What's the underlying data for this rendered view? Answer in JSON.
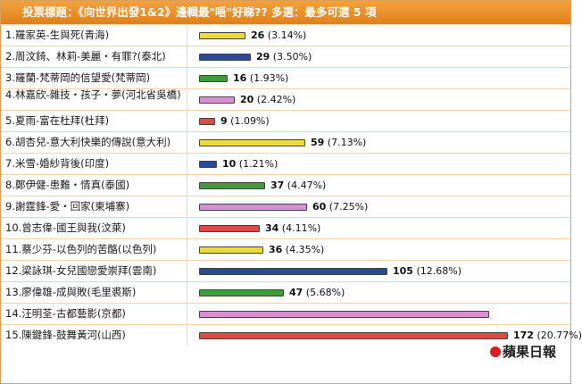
{
  "header": {
    "title": "投票標題：《向世界出發1&2》邊輯最\"唔\"好睇?? 多選：最多可選 5 項"
  },
  "colors": {
    "header": "#f09830",
    "yellow": "#ecdc3a",
    "blue": "#2b4798",
    "green": "#3f9a3a",
    "pink": "#d98ed8",
    "red": "#e04848"
  },
  "options": [
    {
      "label": "1.羅家英-生與死(青海)",
      "votes": "26",
      "pct": "(3.14%)",
      "fraction": 0.1512,
      "color": "yellow"
    },
    {
      "label": "2.周汶錡、林莉-美麗・有罪?(泰北)",
      "votes": "29",
      "pct": "(3.50%)",
      "fraction": 0.1686,
      "color": "blue"
    },
    {
      "label": "3.羅蘭-梵蒂岡的信望愛(梵蒂岡)",
      "votes": "16",
      "pct": "(1.93%)",
      "fraction": 0.093,
      "color": "green"
    },
    {
      "label": "4.林嘉欣-雜技・孩子・夢(河北省吳橋)",
      "votes": "20",
      "pct": "(2.42%)",
      "fraction": 0.1163,
      "color": "pink",
      "wrap": true
    },
    {
      "label": "5.夏雨-富在杜拜(杜拜)",
      "votes": "9",
      "pct": "(1.09%)",
      "fraction": 0.0523,
      "color": "red"
    },
    {
      "label": "6.胡杏兒-意大利快樂的傳說(意大利)",
      "votes": "59",
      "pct": "(7.13%)",
      "fraction": 0.343,
      "color": "yellow"
    },
    {
      "label": "7.米雪-婚紗背後(印度)",
      "votes": "10",
      "pct": "(1.21%)",
      "fraction": 0.0581,
      "color": "blue"
    },
    {
      "label": "8.鄭伊健-患難・情真(泰國)",
      "votes": "37",
      "pct": "(4.47%)",
      "fraction": 0.2151,
      "color": "green"
    },
    {
      "label": "9.謝霆鋒-愛・回家(柬埔寨)",
      "votes": "60",
      "pct": "(7.25%)",
      "fraction": 0.3488,
      "color": "pink"
    },
    {
      "label": "10.曾志偉-國王與我(汶萊)",
      "votes": "34",
      "pct": "(4.11%)",
      "fraction": 0.1977,
      "color": "red"
    },
    {
      "label": "11.蔡少芬-以色列的苦酪(以色列)",
      "votes": "36",
      "pct": "(4.35%)",
      "fraction": 0.2093,
      "color": "yellow"
    },
    {
      "label": "12.梁詠琪-女兒國戀愛崇拜(雲南)",
      "votes": "105",
      "pct": "(12.68%)",
      "fraction": 0.6105,
      "color": "blue"
    },
    {
      "label": "13.廖偉雄-成與敗(毛里裘斯)",
      "votes": "47",
      "pct": "(5.68%)",
      "fraction": 0.2733,
      "color": "green"
    },
    {
      "label": "14.汪明荃-古都藝影(京都)",
      "votes": "",
      "pct": "",
      "fraction": 0.94,
      "color": "pink"
    },
    {
      "label": "15.陳鍵鋒-鼓舞黃河(山西)",
      "votes": "172",
      "pct": "(20.77%)",
      "fraction": 1.0,
      "color": "red"
    }
  ],
  "watermark": {
    "text": "蘋果日報"
  }
}
